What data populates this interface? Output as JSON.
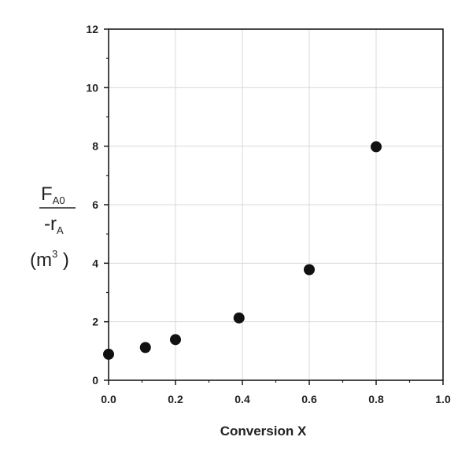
{
  "chart_data": {
    "type": "scatter",
    "title": "",
    "xlabel": "Conversion X",
    "ylabel": {
      "numerator_main": "F",
      "numerator_sub": "A0",
      "denominator_main": "-r",
      "denominator_sub": "A",
      "unit_open": "(m",
      "unit_sup": "3",
      "unit_close": " )"
    },
    "xlim": [
      0.0,
      1.0
    ],
    "ylim": [
      0,
      12
    ],
    "x_ticks": [
      "0.0",
      "0.2",
      "0.4",
      "0.6",
      "0.8",
      "1.0"
    ],
    "y_ticks": [
      "0",
      "2",
      "4",
      "6",
      "8",
      "10",
      "12"
    ],
    "grid": true,
    "legend": "none",
    "marker_color": "#111111",
    "grid_color": "#d9d9d9",
    "axis_color": "#1a1a1a",
    "points": [
      {
        "x": 0.0,
        "y": 0.89
      },
      {
        "x": 0.11,
        "y": 1.12
      },
      {
        "x": 0.2,
        "y": 1.39
      },
      {
        "x": 0.39,
        "y": 2.13
      },
      {
        "x": 0.6,
        "y": 3.78
      },
      {
        "x": 0.8,
        "y": 7.98
      }
    ]
  }
}
